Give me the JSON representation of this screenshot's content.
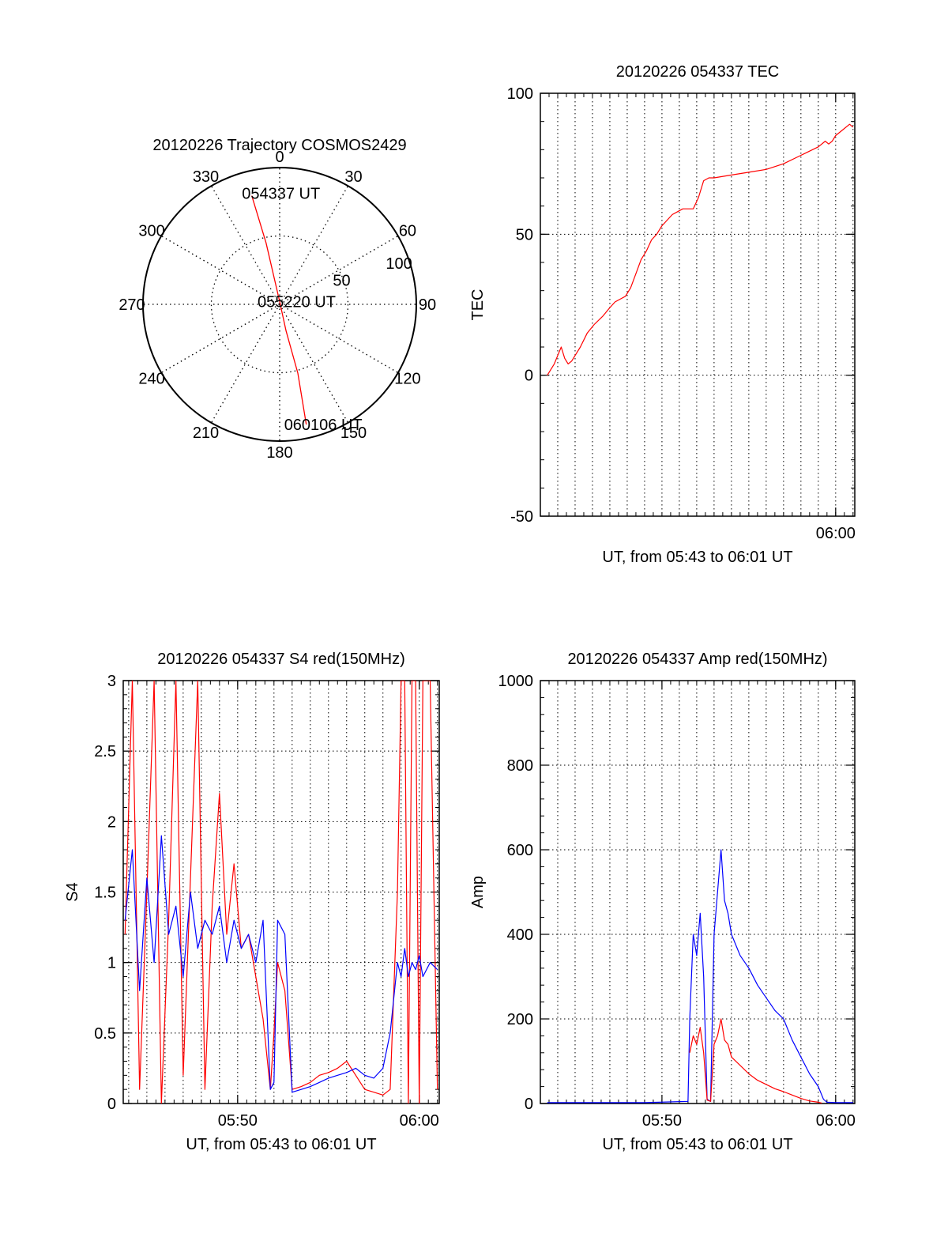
{
  "chart_data": [
    {
      "type": "polar",
      "title": "20120226 Trajectory COSMOS2429",
      "angle_labels": [
        "0",
        "30",
        "60",
        "90",
        "120",
        "150",
        "180",
        "210",
        "240",
        "270",
        "300",
        "330"
      ],
      "radial_labels": [
        "50",
        "100"
      ],
      "radial_range": [
        0,
        100
      ],
      "grid": true,
      "series": [
        {
          "color": "#ff0000",
          "points": [
            [
              345.6,
              82
            ],
            [
              347.5,
              46
            ],
            [
              0,
              2
            ],
            [
              166.4,
              20
            ],
            [
              165.2,
              52
            ],
            [
              167.5,
              90
            ]
          ]
        }
      ],
      "annotations": [
        {
          "text": "054337 UT",
          "azimuth": 352,
          "radius": 82
        },
        {
          "text": "055220 UT",
          "azimuth": 0,
          "radius": 2
        },
        {
          "text": "060106 UT",
          "azimuth": 167.5,
          "radius": 90
        }
      ]
    },
    {
      "type": "line",
      "title": "20120226 054337 TEC",
      "xlabel": "UT, from 05:43 to 06:01 UT",
      "ylabel": "TEC",
      "xlim": [
        43.0,
        61.1
      ],
      "ylim": [
        -50,
        100
      ],
      "y_ticks": [
        -50,
        0,
        50,
        100
      ],
      "x_ticks": [
        {
          "value": 60,
          "label": "06:00"
        }
      ],
      "grid": true,
      "series": [
        {
          "color": "#ff0000",
          "x": [
            43.4,
            43.8,
            44.0,
            44.2,
            44.4,
            44.6,
            44.8,
            45.0,
            45.3,
            45.7,
            46.1,
            46.6,
            47.0,
            47.3,
            47.6,
            47.9,
            48.2,
            48.5,
            48.8,
            49.1,
            49.4,
            49.7,
            50.0,
            50.3,
            50.6,
            50.9,
            51.2,
            51.5,
            51.8,
            52.1,
            52.4,
            52.7,
            53.0,
            54.0,
            55.0,
            56.0,
            57.0,
            58.0,
            59.0,
            59.4,
            59.6,
            59.8,
            60.0,
            60.4,
            60.8,
            61.0
          ],
          "values": [
            0,
            4,
            7,
            10,
            6,
            4,
            5,
            7,
            10,
            15,
            18,
            21,
            24,
            26,
            27,
            28,
            31,
            36,
            41,
            44,
            48,
            50,
            53,
            55,
            57,
            58,
            59,
            59,
            59,
            63,
            69,
            70,
            70,
            71,
            72,
            73,
            75,
            78,
            81,
            83,
            82,
            83,
            85,
            87,
            89,
            88
          ]
        }
      ]
    },
    {
      "type": "line",
      "title": "20120226 054337 S4 red(150MHz)",
      "xlabel": "UT, from 05:43 to 06:01 UT",
      "ylabel": "S4",
      "xlim": [
        43.7,
        61.1
      ],
      "ylim": [
        0,
        3
      ],
      "y_ticks": [
        0,
        0.5,
        1,
        1.5,
        2,
        2.5,
        3
      ],
      "x_ticks": [
        {
          "value": 50,
          "label": "05:50"
        },
        {
          "value": 60,
          "label": "06:00"
        }
      ],
      "grid": true,
      "series": [
        {
          "color": "#ff0000",
          "x": [
            43.8,
            44.2,
            44.6,
            45.0,
            45.4,
            45.8,
            46.2,
            46.6,
            47.0,
            47.4,
            47.8,
            48.2,
            48.6,
            49.0,
            49.4,
            49.8,
            50.2,
            50.6,
            51.0,
            51.4,
            51.8,
            52.0,
            52.2,
            52.6,
            53.0,
            53.5,
            54.0,
            54.5,
            55.0,
            55.5,
            56.0,
            56.5,
            57.0,
            57.5,
            58.0,
            58.4,
            58.8,
            59.0,
            59.2,
            59.4,
            59.6,
            59.8,
            60.0,
            60.2,
            60.6,
            61.0
          ],
          "values": [
            1.2,
            3.0,
            0.1,
            1.5,
            3.0,
            0.0,
            1.3,
            3.0,
            0.2,
            1.6,
            3.0,
            0.1,
            1.4,
            2.2,
            1.2,
            1.7,
            1.1,
            1.2,
            0.9,
            0.6,
            0.1,
            0.5,
            1.0,
            0.8,
            0.1,
            0.12,
            0.15,
            0.2,
            0.22,
            0.25,
            0.3,
            0.2,
            0.1,
            0.08,
            0.06,
            0.1,
            1.5,
            3.0,
            3.0,
            0.0,
            3.0,
            3.0,
            0.0,
            3.0,
            3.0,
            0.1
          ]
        },
        {
          "color": "#0000ff",
          "x": [
            43.8,
            44.2,
            44.6,
            45.0,
            45.4,
            45.8,
            46.2,
            46.6,
            47.0,
            47.4,
            47.8,
            48.2,
            48.6,
            49.0,
            49.4,
            49.8,
            50.2,
            50.6,
            51.0,
            51.4,
            51.8,
            52.0,
            52.2,
            52.6,
            53.0,
            53.5,
            54.0,
            54.5,
            55.0,
            55.5,
            56.0,
            56.5,
            57.0,
            57.5,
            58.0,
            58.4,
            58.8,
            59.0,
            59.2,
            59.4,
            59.6,
            59.8,
            60.0,
            60.2,
            60.6,
            61.0
          ],
          "values": [
            1.3,
            1.8,
            0.8,
            1.6,
            1.0,
            1.9,
            1.2,
            1.4,
            0.9,
            1.5,
            1.1,
            1.3,
            1.2,
            1.4,
            1.0,
            1.3,
            1.1,
            1.2,
            1.0,
            1.3,
            0.1,
            0.15,
            1.3,
            1.2,
            0.08,
            0.1,
            0.12,
            0.15,
            0.18,
            0.2,
            0.22,
            0.25,
            0.2,
            0.18,
            0.25,
            0.5,
            1.0,
            0.9,
            1.1,
            0.9,
            1.0,
            0.95,
            1.05,
            0.9,
            1.0,
            0.95
          ]
        }
      ]
    },
    {
      "type": "line",
      "title": "20120226 054337 Amp red(150MHz)",
      "xlabel": "UT, from 05:43 to 06:01 UT",
      "ylabel": "Amp",
      "xlim": [
        43.0,
        61.1
      ],
      "ylim": [
        0,
        1000
      ],
      "y_ticks": [
        0,
        200,
        400,
        600,
        800,
        1000
      ],
      "x_ticks": [
        {
          "value": 50,
          "label": "05:50"
        },
        {
          "value": 60,
          "label": "06:00"
        }
      ],
      "grid": true,
      "series": [
        {
          "color": "#0000ff",
          "x": [
            43.4,
            46.0,
            49.0,
            51.5,
            51.6,
            51.8,
            52.0,
            52.2,
            52.4,
            52.6,
            52.8,
            53.0,
            53.2,
            53.4,
            53.6,
            53.8,
            54.0,
            54.5,
            55.0,
            55.5,
            56.0,
            56.5,
            57.0,
            57.5,
            58.0,
            58.5,
            59.0,
            59.3,
            59.5,
            60.0,
            61.0
          ],
          "values": [
            2,
            2,
            2,
            5,
            200,
            400,
            350,
            450,
            300,
            10,
            5,
            400,
            500,
            600,
            480,
            450,
            400,
            350,
            320,
            280,
            250,
            220,
            200,
            150,
            110,
            70,
            40,
            10,
            3,
            2,
            2
          ]
        },
        {
          "color": "#ff0000",
          "x": [
            51.6,
            51.8,
            52.0,
            52.2,
            52.4,
            52.6,
            52.8,
            53.0,
            53.2,
            53.4,
            53.6,
            53.8,
            54.0,
            54.5,
            55.0,
            55.5,
            56.0,
            56.5,
            57.0,
            57.5,
            58.0,
            58.5,
            59.0,
            59.2
          ],
          "values": [
            120,
            160,
            140,
            180,
            120,
            8,
            5,
            140,
            160,
            200,
            150,
            140,
            110,
            90,
            70,
            55,
            45,
            35,
            28,
            20,
            12,
            6,
            3,
            1
          ]
        }
      ]
    }
  ]
}
